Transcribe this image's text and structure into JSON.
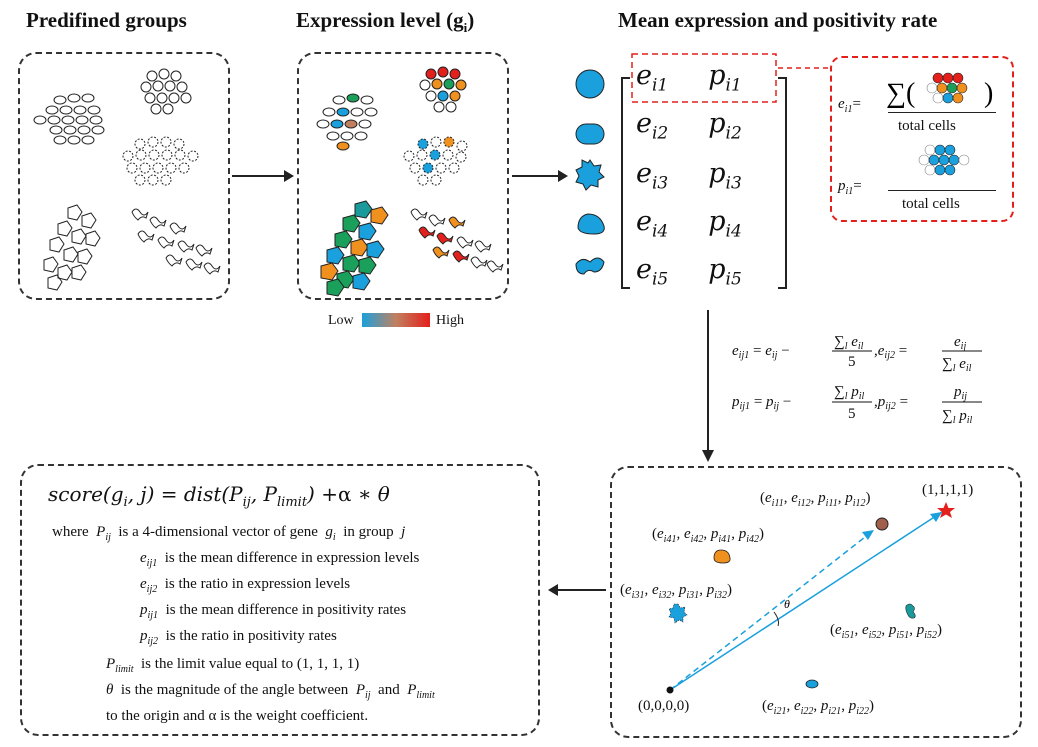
{
  "titles": {
    "predefined": "Predifined groups",
    "expression": "Expression level (g",
    "expression_sub": "i",
    "expression_close": ")",
    "mean": "Mean expression and positivity rate"
  },
  "legend": {
    "low": "Low",
    "high": "High"
  },
  "matrix": {
    "rows": [
      {
        "e": "e",
        "e_sub": "i1",
        "p": "p",
        "p_sub": "i1"
      },
      {
        "e": "e",
        "e_sub": "i2",
        "p": "p",
        "p_sub": "i2"
      },
      {
        "e": "e",
        "e_sub": "i3",
        "p": "p",
        "p_sub": "i3"
      },
      {
        "e": "e",
        "e_sub": "i4",
        "p": "p",
        "p_sub": "i4"
      },
      {
        "e": "e",
        "e_sub": "i5",
        "p": "p",
        "p_sub": "i5"
      }
    ]
  },
  "detail_box": {
    "e_label": "e",
    "e_sub": "i1",
    "p_label": "p",
    "p_sub": "i1",
    "eq": "=",
    "total_cells": "total cells"
  },
  "formulas": {
    "line1": "e",
    "line2": "p"
  },
  "scatter": {
    "limit_label": "(1,1,1,1)",
    "origin_label": "(0,0,0,0)",
    "theta": "θ",
    "points": [
      {
        "label": "(e",
        "subs": [
          "i11",
          "i12",
          "i11",
          "i12"
        ]
      },
      {
        "label": "(e",
        "subs": [
          "i41",
          "i42",
          "i41",
          "i42"
        ]
      },
      {
        "label": "(e",
        "subs": [
          "i31",
          "i32",
          "i31",
          "i32"
        ]
      },
      {
        "label": "(e",
        "subs": [
          "i51",
          "i52",
          "i51",
          "i52"
        ]
      },
      {
        "label": "(e",
        "subs": [
          "i21",
          "i22",
          "i21",
          "i22"
        ]
      }
    ]
  },
  "score_box": {
    "formula": "score(g",
    "where": "where",
    "lines": [
      "is a 4-dimensional vector of gene",
      "in group",
      "is the mean difference in expression levels",
      "is the ratio in expression levels",
      "is the mean difference in positivity rates",
      "is the ratio in positivity rates",
      "is the limit value equal to  (1, 1, 1, 1)",
      "is the magnitude of the angle between",
      "and",
      "to the origin and α is the weight coefficient."
    ]
  },
  "colors": {
    "blue": "#1aa0dc",
    "green": "#1aa05a",
    "orange": "#f0901e",
    "red": "#e3201b",
    "gray": "#b0b0b0",
    "dashed_red": "#e3201b",
    "teal": "#1a9a9a",
    "brown": "#a0604a"
  }
}
